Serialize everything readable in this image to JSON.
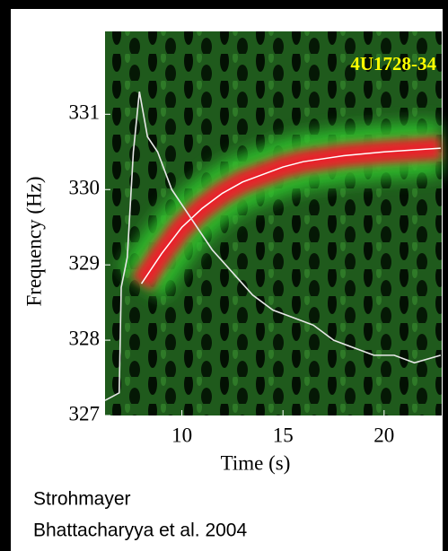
{
  "chart_data": {
    "type": "line",
    "annotation": "4U1728-34",
    "xlabel": "Time (s)",
    "ylabel": "Frequency (Hz)",
    "credits": [
      "Strohmayer",
      "Bhattacharyya et al. 2004"
    ],
    "xlim": [
      6.2,
      22.85
    ],
    "ylim": [
      327,
      332.1
    ],
    "xticks": [
      10,
      15,
      20
    ],
    "yticks": [
      327,
      328,
      329,
      330,
      331
    ],
    "series": [
      {
        "color": "#ffffff",
        "x": [
          8.0,
          9,
          10,
          11,
          12,
          13,
          14,
          15,
          16,
          18,
          20,
          22.8
        ],
        "values": [
          328.75,
          329.15,
          329.5,
          329.75,
          329.95,
          330.1,
          330.2,
          330.3,
          330.37,
          330.45,
          330.5,
          330.55
        ]
      },
      {
        "color": "#e8e8e8",
        "x": [
          6.2,
          6.9,
          7.0,
          7.3,
          7.6,
          7.9,
          8.3,
          8.8,
          9.5,
          10.5,
          11.5,
          12.5,
          13.5,
          14.5,
          15.5,
          16.5,
          17.5,
          18.5,
          19.5,
          20.5,
          21.5,
          22.8
        ],
        "values": [
          327.2,
          327.3,
          328.7,
          329.1,
          330.5,
          331.3,
          330.7,
          330.5,
          330.0,
          329.6,
          329.2,
          328.9,
          328.6,
          328.4,
          328.3,
          328.2,
          328.0,
          327.9,
          327.8,
          327.8,
          327.7,
          327.8
        ]
      }
    ]
  }
}
